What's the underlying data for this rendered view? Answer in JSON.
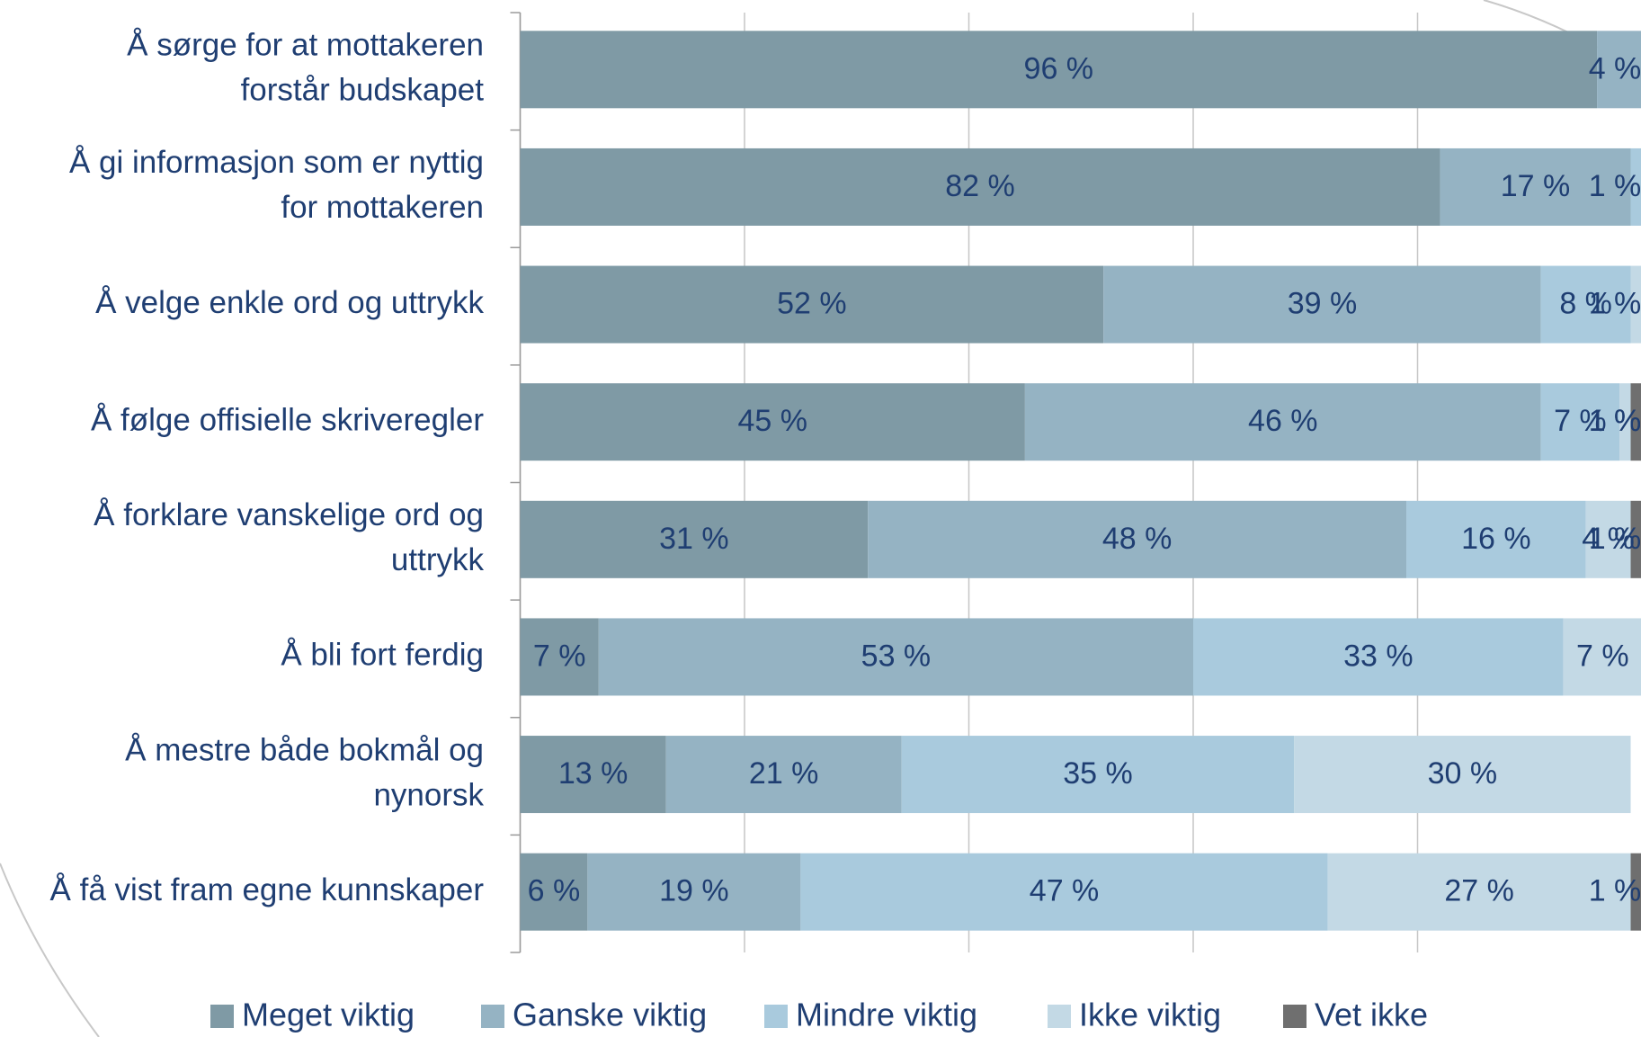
{
  "chart_data": {
    "type": "stacked-bar-horizontal",
    "categories": [
      [
        "Å sørge for at mottakeren",
        "forstår budskapet"
      ],
      [
        "Å gi informasjon som er nyttig",
        "for mottakeren"
      ],
      [
        "Å velge enkle ord og uttrykk"
      ],
      [
        "Å følge offisielle skriveregler"
      ],
      [
        "Å forklare vanskelige ord og",
        "uttrykk"
      ],
      [
        "Å bli fort ferdig"
      ],
      [
        "Å mestre både bokmål og",
        "nynorsk"
      ],
      [
        "Å få vist fram egne kunnskaper"
      ]
    ],
    "series": [
      {
        "name": "Meget viktig",
        "color": "#7f9aa5",
        "values": [
          96,
          82,
          52,
          45,
          31,
          7,
          13,
          6
        ],
        "value_labels": [
          "96 %",
          "82 %",
          "52 %",
          "45 %",
          "31 %",
          "7 %",
          "13 %",
          "6 %"
        ]
      },
      {
        "name": "Ganske viktig",
        "color": "#95b3c3",
        "values": [
          4,
          17,
          39,
          46,
          48,
          53,
          21,
          19
        ],
        "value_labels": [
          "4 %",
          "17 %",
          "39 %",
          "46 %",
          "48 %",
          "53 %",
          "21 %",
          "19 %"
        ]
      },
      {
        "name": "Mindre viktig",
        "color": "#a9cadd",
        "values": [
          null,
          1,
          8,
          7,
          16,
          33,
          35,
          47
        ],
        "value_labels": [
          null,
          "1 %",
          "8 %",
          "7 %",
          "16 %",
          "33 %",
          "35 %",
          "47 %"
        ]
      },
      {
        "name": "Ikke viktig",
        "color": "#c3d9e5",
        "values": [
          null,
          null,
          1,
          1,
          4,
          7,
          30,
          27
        ],
        "value_labels": [
          null,
          null,
          "1 %",
          "1 %",
          "4 %",
          "7 %",
          "30 %",
          "27 %"
        ]
      },
      {
        "name": "Vet ikke",
        "color": "#6f6f6f",
        "values": [
          null,
          null,
          null,
          1,
          1,
          null,
          null,
          1
        ],
        "value_labels": [
          null,
          null,
          null,
          "1 %",
          "1 %",
          null,
          null,
          "1 %"
        ]
      }
    ],
    "xlim": [
      0,
      100
    ],
    "xticks": [
      0,
      20,
      40,
      60,
      80,
      100
    ],
    "grid": true,
    "legend": "bottom"
  }
}
